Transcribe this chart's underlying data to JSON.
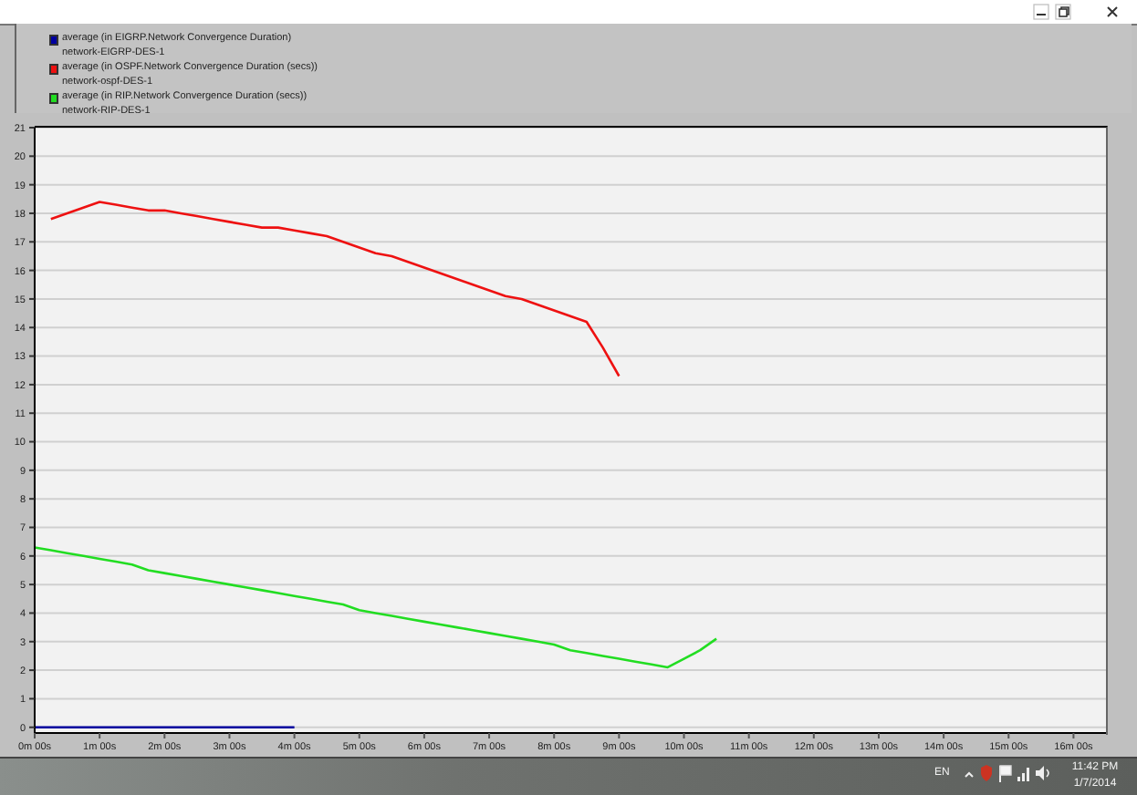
{
  "chart_data": {
    "type": "line",
    "categories": [
      "0m 00s",
      null,
      null,
      null,
      "1m 00s",
      null,
      null,
      null,
      "2m 00s",
      null,
      null,
      null,
      "3m 00s",
      null,
      null,
      null,
      "4m 00s",
      null,
      null,
      null,
      "5m 00s",
      null,
      null,
      null,
      "6m 00s",
      null,
      null,
      null,
      "7m 00s",
      null,
      null,
      null,
      "8m 00s",
      null,
      null,
      null,
      "9m 00s",
      null,
      null,
      null,
      "10m 00s",
      null,
      null,
      null,
      "11m 00s",
      null,
      null,
      null,
      "12m 00s",
      null,
      null,
      null,
      "13m 00s",
      null,
      null,
      null,
      "14m 00s",
      null,
      null,
      null,
      "15m 00s",
      null,
      null,
      null,
      "16m 00s",
      null,
      null
    ],
    "series": [
      {
        "name": "average (in EIGRP.Network Convergence Duration)\nnetwork-EIGRP-DES-1",
        "color": "#0000a0",
        "values": [
          0,
          0,
          0,
          0,
          0,
          0,
          0,
          0,
          0,
          0,
          0,
          0,
          0,
          0,
          0,
          0,
          0,
          null,
          null,
          null,
          null,
          null,
          null,
          null,
          null,
          null,
          null,
          null,
          null,
          null,
          null,
          null,
          null,
          null,
          null,
          null,
          null,
          null,
          null,
          null,
          null,
          null,
          null,
          null,
          null,
          null,
          null,
          null,
          null,
          null,
          null,
          null,
          null,
          null,
          null,
          null,
          null,
          null,
          null,
          null,
          null,
          null,
          null,
          null,
          null,
          null,
          null
        ]
      },
      {
        "name": "average (in OSPF.Network Convergence Duration (secs))\nnetwork-ospf-DES-1",
        "color": "#ee1111",
        "values": [
          null,
          17.8,
          18.0,
          18.2,
          18.4,
          18.3,
          18.2,
          18.1,
          18.1,
          18.0,
          17.9,
          17.8,
          17.7,
          17.6,
          17.5,
          17.5,
          17.4,
          17.3,
          17.2,
          17.0,
          16.8,
          16.6,
          16.5,
          16.3,
          16.1,
          15.9,
          15.7,
          15.5,
          15.3,
          15.1,
          15.0,
          14.8,
          14.6,
          14.4,
          14.2,
          13.3,
          12.3,
          null,
          null,
          null,
          null,
          null,
          null,
          null,
          null,
          null,
          null,
          null,
          null,
          null,
          null,
          null,
          null,
          null,
          null,
          null,
          null,
          null,
          null,
          null,
          null,
          null,
          null,
          null,
          null,
          null,
          null
        ]
      },
      {
        "name": "average (in RIP.Network Convergence Duration (secs))\nnetwork-RIP-DES-1",
        "color": "#22dd22",
        "values": [
          6.3,
          6.2,
          6.1,
          6.0,
          5.9,
          5.8,
          5.7,
          5.5,
          5.4,
          5.3,
          5.2,
          5.1,
          5.0,
          4.9,
          4.8,
          4.7,
          4.6,
          4.5,
          4.4,
          4.3,
          4.1,
          4.0,
          3.9,
          3.8,
          3.7,
          3.6,
          3.5,
          3.4,
          3.3,
          3.2,
          3.1,
          3.0,
          2.9,
          2.7,
          2.6,
          2.5,
          2.4,
          2.3,
          2.2,
          2.1,
          2.4,
          2.7,
          3.1,
          null,
          null,
          null,
          null,
          null,
          null,
          null,
          null,
          null,
          null,
          null,
          null,
          null,
          null,
          null,
          null,
          null,
          null,
          null,
          null,
          null,
          null,
          null,
          null
        ]
      }
    ],
    "ylim": [
      -0.2,
      21
    ],
    "yticks": [
      0,
      1,
      2,
      3,
      4,
      5,
      6,
      7,
      8,
      9,
      10,
      11,
      12,
      13,
      14,
      15,
      16,
      17,
      18,
      19,
      20,
      21
    ],
    "grid": "y",
    "legend": "top left",
    "marker": "none",
    "line_style": "solid",
    "annotations": [
      "EN",
      "11:42 PM",
      "1/7/2014"
    ]
  }
}
